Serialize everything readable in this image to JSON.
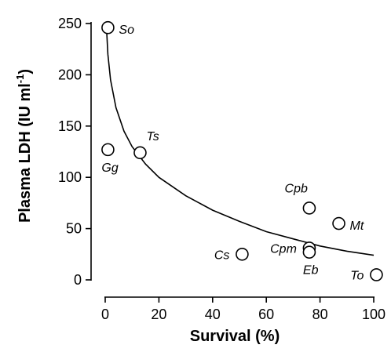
{
  "chart_data": {
    "type": "scatter",
    "title": "",
    "xlabel": "Survival (%)",
    "ylabel": "Plasma LDH (IU ml",
    "ylabel_sup": "-1",
    "ylabel_close": ")",
    "xlim": [
      0,
      100
    ],
    "ylim": [
      0,
      250
    ],
    "xticks": [
      0,
      20,
      40,
      60,
      80,
      100
    ],
    "yticks": [
      0,
      50,
      100,
      150,
      200,
      250
    ],
    "grid": false,
    "points": [
      {
        "label": "So",
        "x": 1,
        "y": 246,
        "label_pos": "right"
      },
      {
        "label": "Gg",
        "x": 1,
        "y": 127,
        "label_pos": "below"
      },
      {
        "label": "Ts",
        "x": 13,
        "y": 124,
        "label_pos": "above-right"
      },
      {
        "label": "Cs",
        "x": 51,
        "y": 25,
        "label_pos": "left"
      },
      {
        "label": "Cpb",
        "x": 76,
        "y": 70,
        "label_pos": "above-left"
      },
      {
        "label": "Cpm",
        "x": 76,
        "y": 31,
        "label_pos": "left"
      },
      {
        "label": "Eb",
        "x": 76,
        "y": 27,
        "label_pos": "below"
      },
      {
        "label": "Mt",
        "x": 87,
        "y": 55,
        "label_pos": "right"
      },
      {
        "label": "To",
        "x": 101,
        "y": 5,
        "label_pos": "left"
      }
    ],
    "fit_curve": [
      {
        "x": 0.5,
        "y": 245
      },
      {
        "x": 1,
        "y": 220
      },
      {
        "x": 2,
        "y": 195
      },
      {
        "x": 4,
        "y": 168
      },
      {
        "x": 7,
        "y": 145
      },
      {
        "x": 10,
        "y": 130
      },
      {
        "x": 15,
        "y": 113
      },
      {
        "x": 20,
        "y": 100
      },
      {
        "x": 30,
        "y": 82
      },
      {
        "x": 40,
        "y": 68
      },
      {
        "x": 50,
        "y": 57
      },
      {
        "x": 60,
        "y": 47
      },
      {
        "x": 70,
        "y": 40
      },
      {
        "x": 80,
        "y": 33
      },
      {
        "x": 90,
        "y": 28
      },
      {
        "x": 100,
        "y": 24
      }
    ]
  }
}
